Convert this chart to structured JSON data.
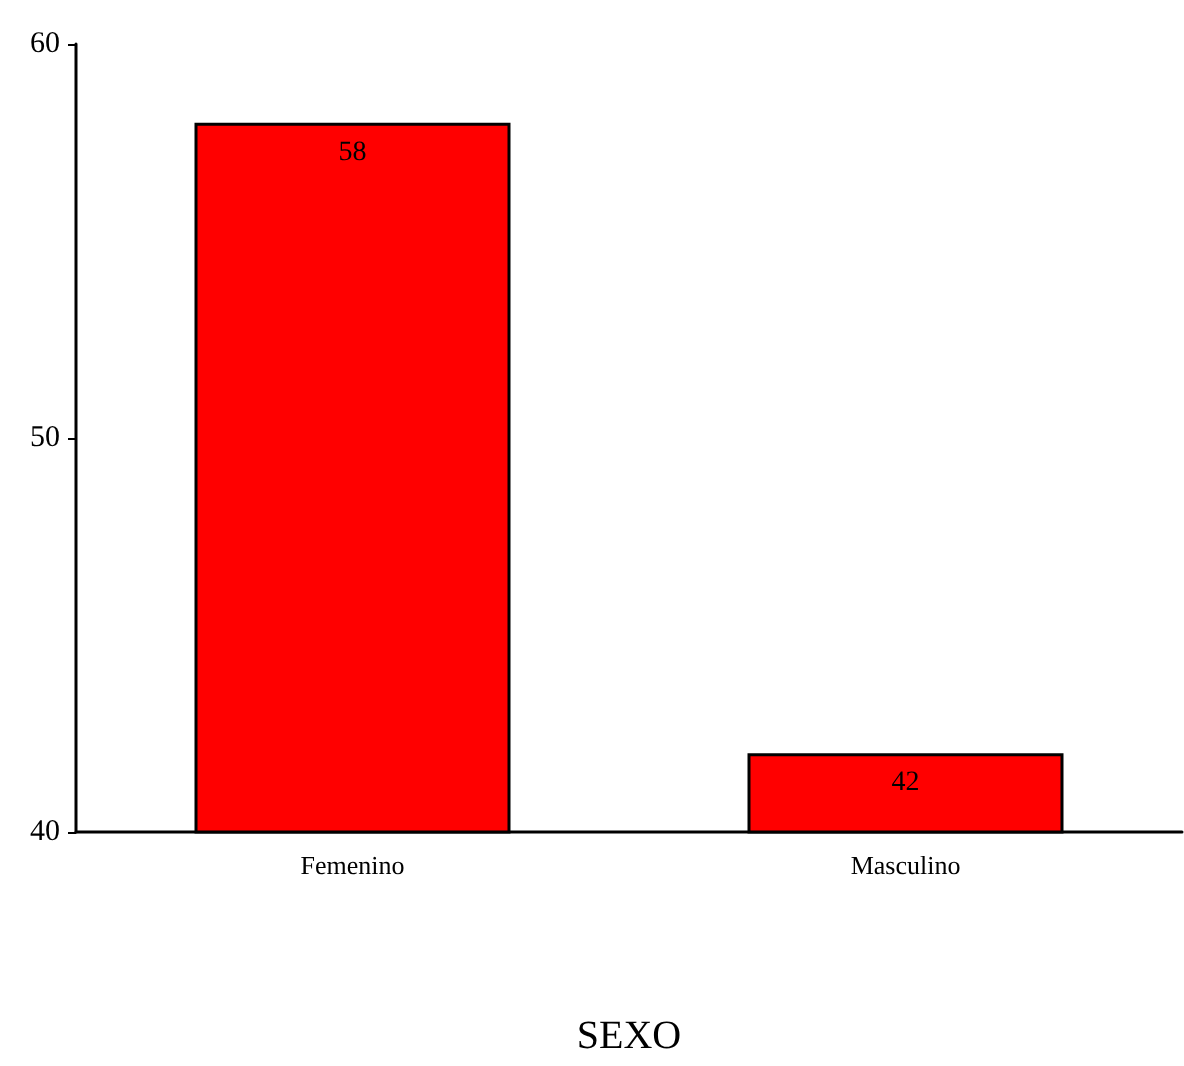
{
  "chart_data": {
    "type": "bar",
    "xlabel": "SEXO",
    "categories": [
      "Femenino",
      "Masculino"
    ],
    "values": [
      58,
      42
    ],
    "color": "#ff0000",
    "ylim": [
      40,
      60
    ],
    "yticks": [
      40,
      50,
      60
    ],
    "grid": false,
    "data_labels": true
  }
}
